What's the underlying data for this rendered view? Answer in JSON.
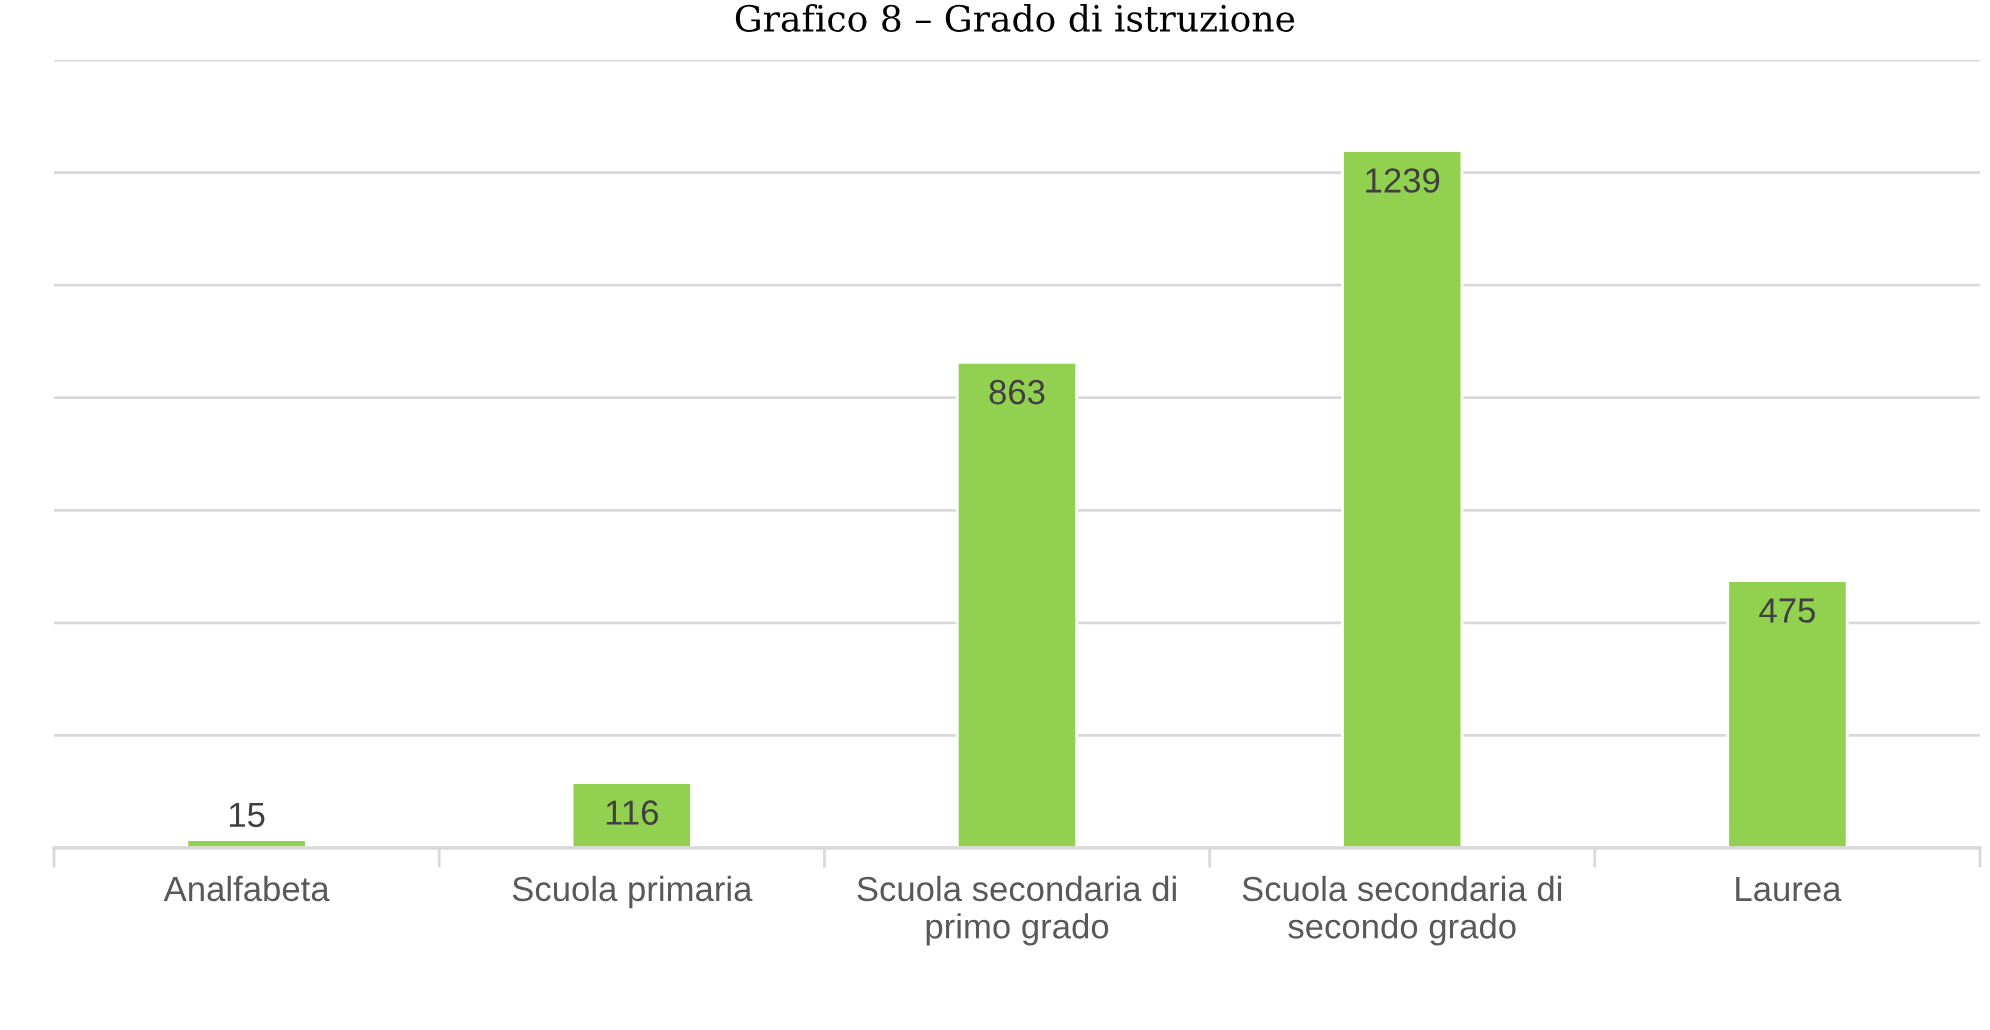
{
  "chart_data": {
    "type": "bar",
    "title": "Grafico 8 – Grado di istruzione",
    "categories": [
      "Analfabeta",
      "Scuola primaria",
      "Scuola secondaria di\nprimo grado",
      "Scuola secondaria di\nsecondo grado",
      "Laurea"
    ],
    "values": [
      15,
      116,
      863,
      1239,
      475
    ],
    "color": "#92d050",
    "ylim": [
      0,
      1400
    ],
    "yticks": [
      {
        "value": 0,
        "label": null
      },
      {
        "value": 200,
        "label": null
      },
      {
        "value": 400,
        "label": null
      },
      {
        "value": 600,
        "label": null
      },
      {
        "value": 800,
        "label": null
      },
      {
        "value": 1000,
        "label": null
      },
      {
        "value": 1200,
        "label": null
      },
      {
        "value": 1400,
        "label": null
      }
    ],
    "grid": "y",
    "tick_labels": "x",
    "data_labels": true
  }
}
